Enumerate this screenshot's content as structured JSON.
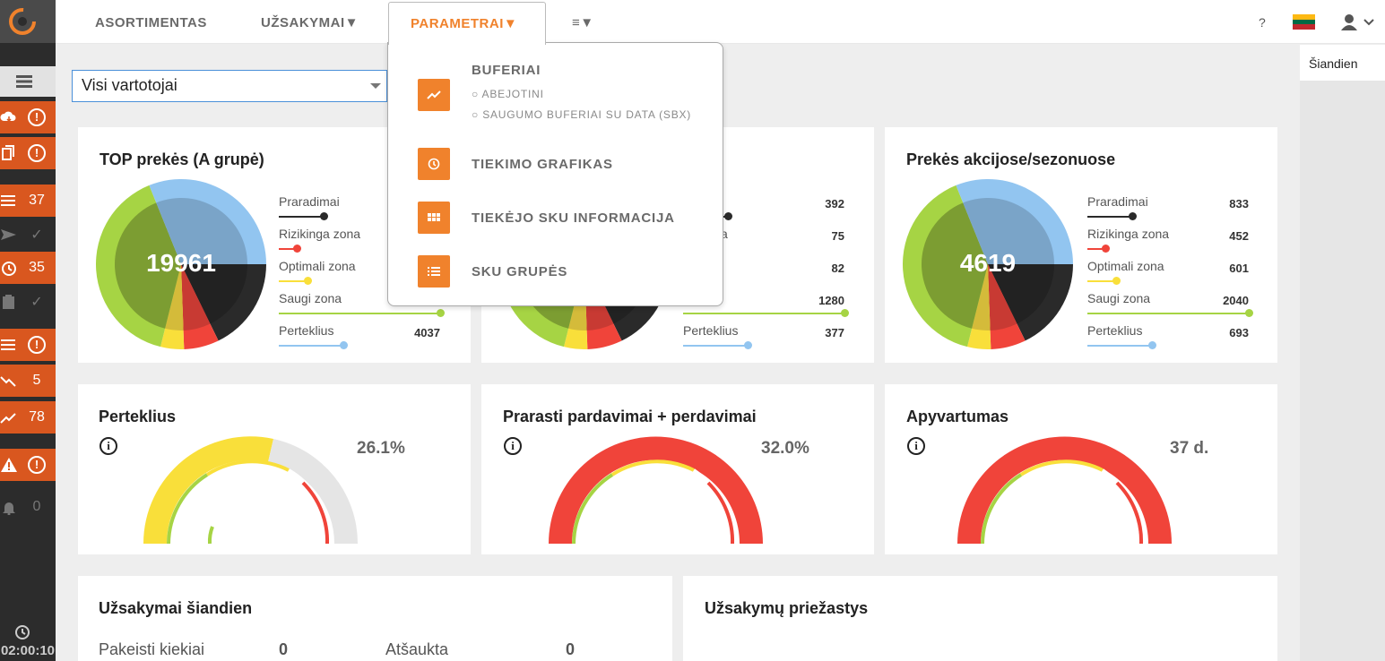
{
  "colors": {
    "accent": "#f0822c",
    "sidebar_orange": "#d9571f",
    "green": "#a6d444",
    "green_dark": "#7c9d32",
    "yellow": "#f9df3a",
    "red": "#f0443a",
    "black": "#2a2a2a",
    "blue": "#92c5f0"
  },
  "nav": {
    "items": [
      {
        "label": "ASORTIMENTAS"
      },
      {
        "label": "UŽSAKYMAI▼"
      },
      {
        "label": "PARAMETRAI▼"
      },
      {
        "label": "≡▼"
      }
    ],
    "help": "?",
    "flag_icon": "lithuania-flag-icon",
    "user_icon": "user-icon"
  },
  "dropdown": {
    "items": [
      {
        "label": "BUFERIAI",
        "icon": "trending-up-icon",
        "subitems": [
          "ABEJOTINI",
          "SAUGUMO BUFERIAI SU DATA (SBX)"
        ]
      },
      {
        "label": "TIEKIMO GRAFIKAS",
        "icon": "clock-icon"
      },
      {
        "label": "TIEKĖJO SKU INFORMACIJA",
        "icon": "grid-icon"
      },
      {
        "label": "SKU GRUPĖS",
        "icon": "list-icon"
      }
    ]
  },
  "sidebar": {
    "rows": [
      {
        "icon": "cloud-download-icon",
        "badge": "!",
        "style": "orange"
      },
      {
        "icon": "copy-icon",
        "badge": "!",
        "style": "orange"
      },
      {
        "icon": "list-icon",
        "badge": "37",
        "style": "orange"
      },
      {
        "icon": "send-icon",
        "badge": "✓",
        "style": "dark"
      },
      {
        "icon": "timer-icon",
        "badge": "35",
        "style": "orange"
      },
      {
        "icon": "clipboard-icon",
        "badge": "✓",
        "style": "dark"
      },
      {
        "icon": "list-icon",
        "badge": "!",
        "style": "orange"
      },
      {
        "icon": "trending-down-icon",
        "badge": "5",
        "style": "orange"
      },
      {
        "icon": "trending-up-icon",
        "badge": "78",
        "style": "orange"
      },
      {
        "icon": "warning-icon",
        "badge": "!",
        "style": "orange"
      },
      {
        "icon": "bell-icon",
        "badge": "0",
        "style": "dark"
      }
    ],
    "timer": "02:00:10"
  },
  "filter": {
    "value": "Visi vartotojai"
  },
  "right_panel": {
    "title": "Šiandien"
  },
  "pie_cards": [
    {
      "title": "TOP prekės (A grupė)",
      "total": "19961",
      "legend": [
        {
          "label": "Praradimai",
          "value": ""
        },
        {
          "label": "Rizikinga zona",
          "value": ""
        },
        {
          "label": "Optimali zona",
          "value": ""
        },
        {
          "label": "Saugi zona",
          "value": ""
        },
        {
          "label": "Perteklius",
          "value": "4037"
        }
      ]
    },
    {
      "title": "",
      "total": "",
      "legend": [
        {
          "label": "imai",
          "value": "392"
        },
        {
          "label": "ga zona",
          "value": "75"
        },
        {
          "label": "li zona",
          "value": "82"
        },
        {
          "label": "zona",
          "value": "1280"
        },
        {
          "label": "Perteklius",
          "value": "377"
        }
      ]
    },
    {
      "title": "Prekės akcijose/sezonuose",
      "total": "4619",
      "legend": [
        {
          "label": "Praradimai",
          "value": "833"
        },
        {
          "label": "Rizikinga zona",
          "value": "452"
        },
        {
          "label": "Optimali zona",
          "value": "601"
        },
        {
          "label": "Saugi zona",
          "value": "2040"
        },
        {
          "label": "Perteklius",
          "value": "693"
        }
      ]
    }
  ],
  "gauges": [
    {
      "title": "Perteklius",
      "value": "26.1%"
    },
    {
      "title": "Prarasti pardavimai + perdavimai",
      "value": "32.0%"
    },
    {
      "title": "Apyvartumas",
      "value": "37 d."
    }
  ],
  "orders_today": {
    "title": "Užsakymai šiandien",
    "stats": [
      {
        "label": "Pakeisti kiekiai",
        "value": "0"
      },
      {
        "label": "Atšaukta",
        "value": "0"
      }
    ]
  },
  "order_reasons": {
    "title": "Užsakymų priežastys"
  }
}
